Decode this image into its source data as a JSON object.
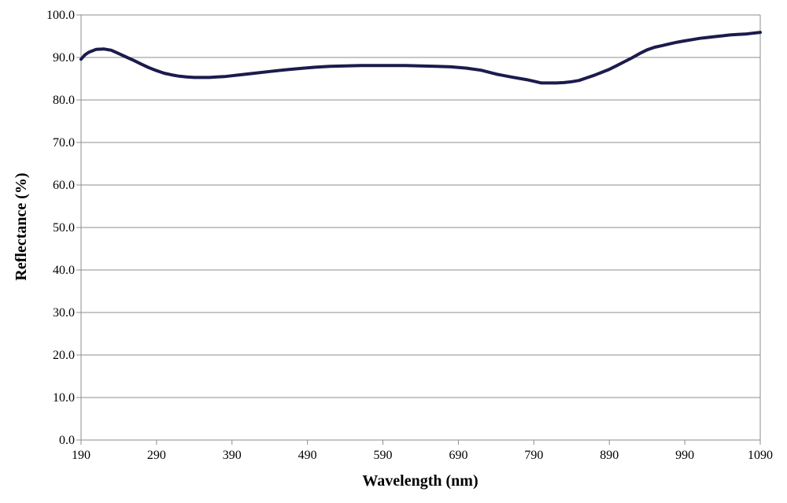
{
  "chart_data": {
    "type": "line",
    "title": "",
    "xlabel": "Wavelength (nm)",
    "ylabel": "Reflectance (%)",
    "xlim": [
      190,
      1090
    ],
    "ylim": [
      0,
      100
    ],
    "x_ticks": [
      190,
      290,
      390,
      490,
      590,
      690,
      790,
      890,
      990,
      1090
    ],
    "x_tick_labels": [
      "190",
      "290",
      "390",
      "490",
      "590",
      "690",
      "790",
      "890",
      "990",
      "1090"
    ],
    "y_ticks": [
      0,
      10,
      20,
      30,
      40,
      50,
      60,
      70,
      80,
      90,
      100
    ],
    "y_tick_labels": [
      "0.0",
      "10.0",
      "20.0",
      "30.0",
      "40.0",
      "50.0",
      "60.0",
      "70.0",
      "80.0",
      "90.0",
      "100.0"
    ],
    "grid": true,
    "legend": "none",
    "line_color": "#1b1b4d",
    "series": [
      {
        "x": [
          190,
          195,
          200,
          210,
          220,
          230,
          240,
          250,
          260,
          270,
          280,
          290,
          300,
          310,
          320,
          330,
          340,
          350,
          360,
          370,
          380,
          390,
          400,
          420,
          440,
          460,
          480,
          500,
          520,
          540,
          560,
          580,
          600,
          620,
          640,
          660,
          680,
          700,
          720,
          740,
          760,
          780,
          790,
          800,
          810,
          820,
          830,
          840,
          850,
          860,
          870,
          880,
          890,
          900,
          910,
          920,
          930,
          940,
          950,
          960,
          970,
          980,
          990,
          1000,
          1010,
          1020,
          1030,
          1040,
          1050,
          1060,
          1070,
          1080,
          1090
        ],
        "values": [
          89.6,
          90.6,
          91.2,
          91.9,
          92.0,
          91.7,
          90.9,
          90.1,
          89.3,
          88.4,
          87.6,
          86.9,
          86.3,
          85.9,
          85.6,
          85.4,
          85.3,
          85.3,
          85.3,
          85.4,
          85.5,
          85.7,
          85.9,
          86.3,
          86.7,
          87.1,
          87.4,
          87.7,
          87.9,
          88.0,
          88.1,
          88.1,
          88.1,
          88.1,
          88.0,
          87.9,
          87.8,
          87.5,
          87.0,
          86.1,
          85.4,
          84.8,
          84.4,
          84.0,
          84.0,
          84.0,
          84.1,
          84.3,
          84.6,
          85.2,
          85.8,
          86.5,
          87.2,
          88.1,
          89.0,
          89.9,
          90.9,
          91.8,
          92.4,
          92.8,
          93.2,
          93.6,
          93.9,
          94.2,
          94.5,
          94.7,
          94.9,
          95.1,
          95.3,
          95.4,
          95.5,
          95.7,
          95.9
        ]
      }
    ]
  }
}
